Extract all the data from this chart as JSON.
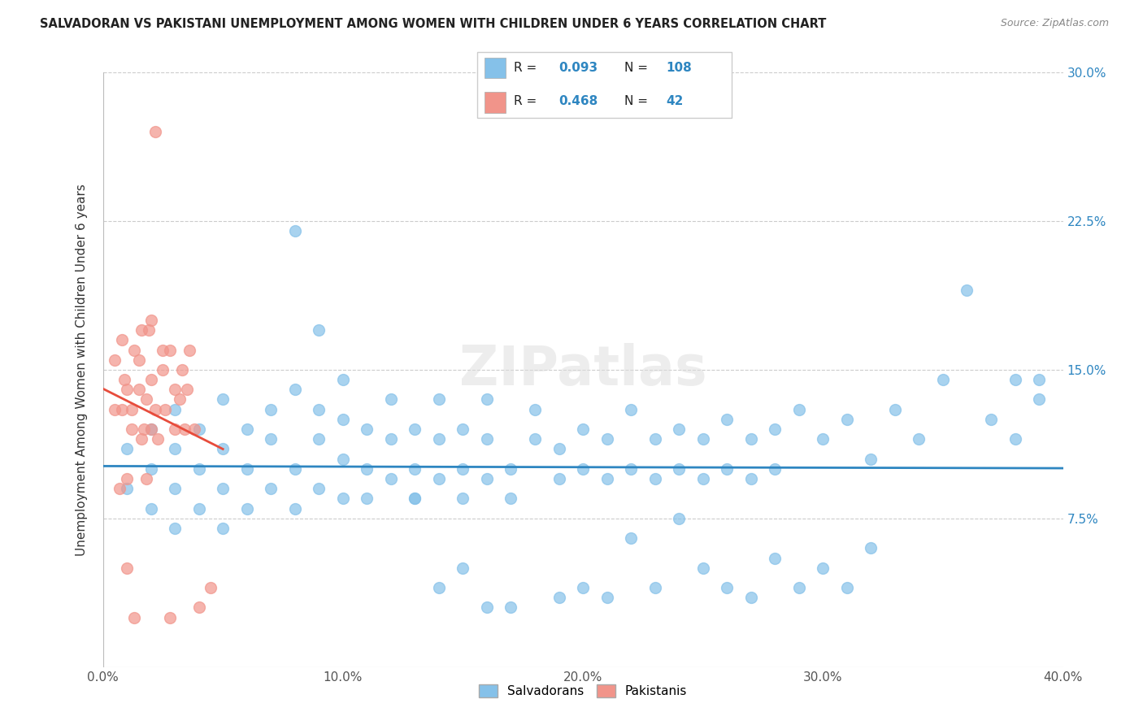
{
  "title": "SALVADORAN VS PAKISTANI UNEMPLOYMENT AMONG WOMEN WITH CHILDREN UNDER 6 YEARS CORRELATION CHART",
  "source": "Source: ZipAtlas.com",
  "ylabel": "Unemployment Among Women with Children Under 6 years",
  "xlim": [
    0.0,
    0.4
  ],
  "ylim": [
    0.0,
    0.3
  ],
  "xtick_labels": [
    "0.0%",
    "",
    "10.0%",
    "",
    "20.0%",
    "",
    "30.0%",
    "",
    "40.0%"
  ],
  "xtick_vals": [
    0.0,
    0.05,
    0.1,
    0.15,
    0.2,
    0.25,
    0.3,
    0.35,
    0.4
  ],
  "ytick_labels_right": [
    "7.5%",
    "15.0%",
    "22.5%",
    "30.0%"
  ],
  "ytick_vals_right": [
    0.075,
    0.15,
    0.225,
    0.3
  ],
  "R_blue": 0.093,
  "N_blue": 108,
  "R_pink": 0.468,
  "N_pink": 42,
  "blue_color": "#85C1E9",
  "pink_color": "#F1948A",
  "trendline_blue": "#2E86C1",
  "trendline_pink": "#E74C3C",
  "watermark": "ZIPatlas",
  "legend_entries": [
    "Salvadorans",
    "Pakistanis"
  ],
  "blue_x": [
    0.01,
    0.01,
    0.02,
    0.02,
    0.02,
    0.03,
    0.03,
    0.03,
    0.03,
    0.04,
    0.04,
    0.04,
    0.05,
    0.05,
    0.05,
    0.05,
    0.06,
    0.06,
    0.06,
    0.07,
    0.07,
    0.07,
    0.08,
    0.08,
    0.08,
    0.09,
    0.09,
    0.09,
    0.1,
    0.1,
    0.1,
    0.1,
    0.11,
    0.11,
    0.11,
    0.12,
    0.12,
    0.12,
    0.13,
    0.13,
    0.13,
    0.14,
    0.14,
    0.14,
    0.15,
    0.15,
    0.15,
    0.16,
    0.16,
    0.16,
    0.17,
    0.17,
    0.18,
    0.18,
    0.19,
    0.19,
    0.2,
    0.2,
    0.21,
    0.21,
    0.22,
    0.22,
    0.23,
    0.23,
    0.24,
    0.24,
    0.25,
    0.25,
    0.26,
    0.26,
    0.27,
    0.27,
    0.28,
    0.28,
    0.29,
    0.3,
    0.31,
    0.32,
    0.33,
    0.34,
    0.35,
    0.36,
    0.37,
    0.38,
    0.38,
    0.39,
    0.39,
    0.3,
    0.31,
    0.32,
    0.25,
    0.26,
    0.14,
    0.15,
    0.08,
    0.09,
    0.2,
    0.21,
    0.16,
    0.17,
    0.19,
    0.23,
    0.27,
    0.29,
    0.22,
    0.24,
    0.28,
    0.13
  ],
  "blue_y": [
    0.11,
    0.09,
    0.1,
    0.08,
    0.12,
    0.09,
    0.11,
    0.07,
    0.13,
    0.1,
    0.08,
    0.12,
    0.09,
    0.11,
    0.07,
    0.135,
    0.1,
    0.12,
    0.08,
    0.115,
    0.09,
    0.13,
    0.1,
    0.08,
    0.14,
    0.115,
    0.09,
    0.13,
    0.105,
    0.085,
    0.125,
    0.145,
    0.1,
    0.12,
    0.085,
    0.115,
    0.095,
    0.135,
    0.1,
    0.12,
    0.085,
    0.115,
    0.095,
    0.135,
    0.1,
    0.12,
    0.085,
    0.115,
    0.095,
    0.135,
    0.1,
    0.085,
    0.115,
    0.13,
    0.095,
    0.11,
    0.1,
    0.12,
    0.095,
    0.115,
    0.1,
    0.13,
    0.095,
    0.115,
    0.1,
    0.12,
    0.095,
    0.115,
    0.1,
    0.125,
    0.095,
    0.115,
    0.1,
    0.12,
    0.13,
    0.115,
    0.125,
    0.105,
    0.13,
    0.115,
    0.145,
    0.19,
    0.125,
    0.145,
    0.115,
    0.135,
    0.145,
    0.05,
    0.04,
    0.06,
    0.05,
    0.04,
    0.04,
    0.05,
    0.22,
    0.17,
    0.04,
    0.035,
    0.03,
    0.03,
    0.035,
    0.04,
    0.035,
    0.04,
    0.065,
    0.075,
    0.055,
    0.085
  ],
  "pink_x": [
    0.005,
    0.005,
    0.007,
    0.008,
    0.008,
    0.009,
    0.01,
    0.01,
    0.01,
    0.012,
    0.012,
    0.013,
    0.013,
    0.015,
    0.015,
    0.016,
    0.016,
    0.017,
    0.018,
    0.018,
    0.019,
    0.02,
    0.02,
    0.02,
    0.022,
    0.022,
    0.023,
    0.025,
    0.025,
    0.026,
    0.028,
    0.028,
    0.03,
    0.03,
    0.032,
    0.033,
    0.034,
    0.035,
    0.036,
    0.038,
    0.04,
    0.045
  ],
  "pink_y": [
    0.13,
    0.155,
    0.09,
    0.165,
    0.13,
    0.145,
    0.05,
    0.095,
    0.14,
    0.13,
    0.12,
    0.16,
    0.025,
    0.14,
    0.155,
    0.115,
    0.17,
    0.12,
    0.135,
    0.095,
    0.17,
    0.12,
    0.145,
    0.175,
    0.13,
    0.27,
    0.115,
    0.16,
    0.15,
    0.13,
    0.025,
    0.16,
    0.14,
    0.12,
    0.135,
    0.15,
    0.12,
    0.14,
    0.16,
    0.12,
    0.03,
    0.04
  ]
}
